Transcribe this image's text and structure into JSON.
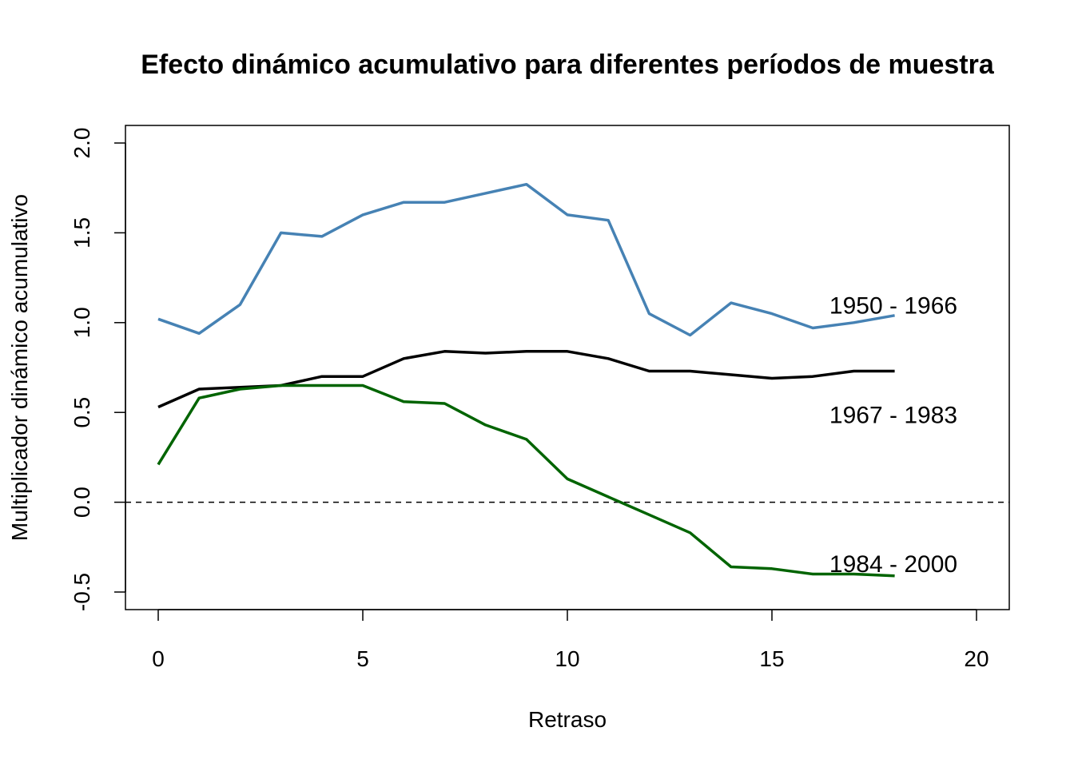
{
  "chart_data": {
    "type": "line",
    "title": "Efecto dinámico acumulativo para diferentes períodos de muestra",
    "xlabel": "Retraso",
    "ylabel": "Multiplicador dinámico acumulativo",
    "xlim": [
      0,
      20
    ],
    "ylim": [
      -0.5,
      2.0
    ],
    "x_ticks": [
      "0",
      "5",
      "10",
      "15",
      "20"
    ],
    "y_ticks": [
      "-0.5",
      "0.0",
      "0.5",
      "1.0",
      "1.5",
      "2.0"
    ],
    "x": [
      0,
      1,
      2,
      3,
      4,
      5,
      6,
      7,
      8,
      9,
      10,
      11,
      12,
      13,
      14,
      15,
      16,
      17,
      18
    ],
    "reference_line": {
      "y": 0,
      "style": "dashed"
    },
    "grid": false,
    "series": [
      {
        "name": "1950 - 1966",
        "color": "#4682b4",
        "values": [
          1.02,
          0.94,
          1.1,
          1.5,
          1.48,
          1.6,
          1.67,
          1.67,
          1.72,
          1.77,
          1.6,
          1.57,
          1.05,
          0.93,
          1.11,
          1.05,
          0.97,
          1.0,
          1.04
        ]
      },
      {
        "name": "1967 - 1983",
        "color": "#000000",
        "values": [
          0.53,
          0.63,
          0.64,
          0.65,
          0.7,
          0.7,
          0.8,
          0.84,
          0.83,
          0.84,
          0.84,
          0.8,
          0.73,
          0.73,
          0.71,
          0.69,
          0.7,
          0.73,
          0.73
        ]
      },
      {
        "name": "1984 - 2000",
        "color": "#006400",
        "values": [
          0.21,
          0.58,
          0.63,
          0.65,
          0.65,
          0.65,
          0.56,
          0.55,
          0.43,
          0.35,
          0.13,
          0.03,
          -0.07,
          -0.17,
          -0.36,
          -0.37,
          -0.4,
          -0.4,
          -0.41
        ]
      }
    ]
  }
}
